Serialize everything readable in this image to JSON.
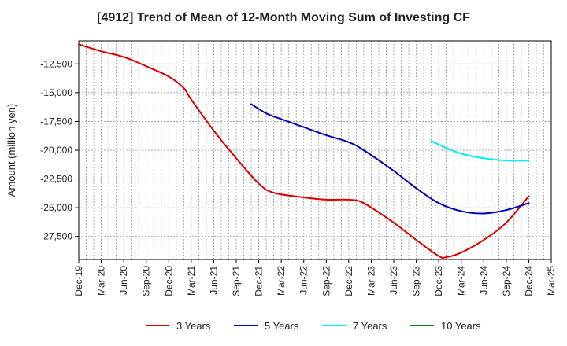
{
  "chart_data": {
    "type": "line",
    "title": "[4912]  Trend of Mean of 12-Month Moving Sum of Investing CF",
    "xlabel": "",
    "ylabel": "Amount (million yen)",
    "ylim": [
      -29500,
      -10500
    ],
    "yticks": [
      -12500,
      -15000,
      -17500,
      -20000,
      -22500,
      -25000,
      -27500
    ],
    "ytick_labels": [
      "-12,500",
      "-15,000",
      "-17,500",
      "-20,000",
      "-22,500",
      "-25,000",
      "-27,500"
    ],
    "x_range": [
      "2019-12",
      "2025-03"
    ],
    "x_tick_labels": [
      "Dec-19",
      "Mar-20",
      "Jun-20",
      "Sep-20",
      "Dec-20",
      "Mar-21",
      "Jun-21",
      "Sep-21",
      "Dec-21",
      "Mar-22",
      "Jun-22",
      "Sep-22",
      "Dec-22",
      "Mar-23",
      "Jun-23",
      "Sep-23",
      "Dec-23",
      "Mar-24",
      "Jun-24",
      "Sep-24",
      "Dec-24",
      "Mar-25"
    ],
    "grid": true,
    "legend_position": "bottom",
    "series": [
      {
        "name": "3 Years",
        "color": "#dd0000",
        "x": [
          "2019-12",
          "2020-03",
          "2020-06",
          "2020-09",
          "2020-12",
          "2021-02",
          "2021-03",
          "2021-06",
          "2021-09",
          "2021-12",
          "2022-02",
          "2022-06",
          "2022-09",
          "2022-12",
          "2023-02",
          "2023-06",
          "2023-09",
          "2023-12",
          "2024-01",
          "2024-03",
          "2024-06",
          "2024-09",
          "2024-12"
        ],
        "values": [
          -10800,
          -11400,
          -11900,
          -12700,
          -13600,
          -14600,
          -15600,
          -18300,
          -20700,
          -22900,
          -23700,
          -24100,
          -24300,
          -24300,
          -24600,
          -26300,
          -27800,
          -29200,
          -29300,
          -28900,
          -27800,
          -26300,
          -24000
        ]
      },
      {
        "name": "5 Years",
        "color": "#0000bb",
        "x": [
          "2021-11",
          "2022-01",
          "2022-03",
          "2022-06",
          "2022-09",
          "2022-12",
          "2023-02",
          "2023-06",
          "2023-09",
          "2023-12",
          "2024-03",
          "2024-06",
          "2024-09",
          "2024-12"
        ],
        "values": [
          -16000,
          -16800,
          -17300,
          -18000,
          -18700,
          -19300,
          -20000,
          -21800,
          -23300,
          -24600,
          -25300,
          -25500,
          -25200,
          -24600
        ]
      },
      {
        "name": "7 Years",
        "color": "#00eeee",
        "x": [
          "2023-11",
          "2024-01",
          "2024-03",
          "2024-06",
          "2024-09",
          "2024-12"
        ],
        "values": [
          -19200,
          -19800,
          -20300,
          -20700,
          -20900,
          -20900
        ]
      },
      {
        "name": "10 Years",
        "color": "#008800",
        "x": [],
        "values": []
      }
    ]
  }
}
